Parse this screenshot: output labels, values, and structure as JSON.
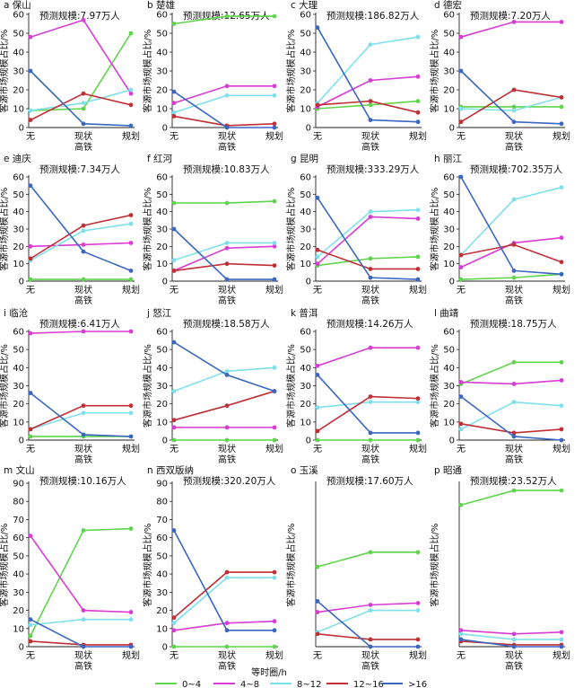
{
  "y_axis_title": "客源市场规模占比/%",
  "x_axis_sub": "高铁",
  "legend": {
    "title": "等时圈/h",
    "items": [
      "0~4",
      "4~8",
      "8~12",
      "12~16",
      ">16"
    ]
  },
  "series_colors": [
    "#5fd44c",
    "#d83cd2",
    "#7fe0ea",
    "#bf2f35",
    "#3a67c0"
  ],
  "chart_data": [
    {
      "type": "line",
      "label": "a 保山",
      "scale": "预测规模:7.97万人",
      "ylim": [
        0,
        60
      ],
      "yticks": [
        0,
        10,
        20,
        30,
        40,
        50,
        60
      ],
      "categories": [
        "无",
        "现状",
        "规划"
      ],
      "series": [
        {
          "name": "0~4",
          "values": [
            9,
            10,
            50
          ]
        },
        {
          "name": "4~8",
          "values": [
            48,
            57,
            18
          ]
        },
        {
          "name": "8~12",
          "values": [
            9,
            13,
            20
          ]
        },
        {
          "name": "12~16",
          "values": [
            4,
            18,
            12
          ]
        },
        {
          "name": ">16",
          "values": [
            30,
            2,
            1
          ]
        }
      ]
    },
    {
      "type": "line",
      "label": "b 楚雄",
      "scale": "预测规模:12.65万人",
      "ylim": [
        0,
        60
      ],
      "yticks": [
        0,
        10,
        20,
        30,
        40,
        50,
        60
      ],
      "categories": [
        "无",
        "现状",
        "规划"
      ],
      "series": [
        {
          "name": "0~4",
          "values": [
            55,
            59,
            59
          ]
        },
        {
          "name": "4~8",
          "values": [
            13,
            22,
            22
          ]
        },
        {
          "name": "8~12",
          "values": [
            8,
            17,
            17
          ]
        },
        {
          "name": "12~16",
          "values": [
            6,
            1,
            2
          ]
        },
        {
          "name": ">16",
          "values": [
            19,
            0,
            0
          ]
        }
      ]
    },
    {
      "type": "line",
      "label": "c 大理",
      "scale": "预测规模:186.82万人",
      "ylim": [
        0,
        60
      ],
      "yticks": [
        0,
        10,
        20,
        30,
        40,
        50,
        60
      ],
      "categories": [
        "无",
        "现状",
        "规划"
      ],
      "series": [
        {
          "name": "0~4",
          "values": [
            10,
            12,
            14
          ]
        },
        {
          "name": "4~8",
          "values": [
            11,
            25,
            27
          ]
        },
        {
          "name": "8~12",
          "values": [
            13,
            44,
            48
          ]
        },
        {
          "name": "12~16",
          "values": [
            12,
            14,
            8
          ]
        },
        {
          "name": ">16",
          "values": [
            53,
            4,
            3
          ]
        }
      ]
    },
    {
      "type": "line",
      "label": "d 德宏",
      "scale": "预测规模:7.20万人",
      "ylim": [
        0,
        60
      ],
      "yticks": [
        0,
        10,
        20,
        30,
        40,
        50,
        60
      ],
      "categories": [
        "无",
        "现状",
        "规划"
      ],
      "series": [
        {
          "name": "0~4",
          "values": [
            11,
            11,
            11
          ]
        },
        {
          "name": "4~8",
          "values": [
            48,
            56,
            56
          ]
        },
        {
          "name": "8~12",
          "values": [
            10,
            9,
            16
          ]
        },
        {
          "name": "12~16",
          "values": [
            3,
            20,
            16
          ]
        },
        {
          "name": ">16",
          "values": [
            30,
            3,
            2
          ]
        }
      ]
    },
    {
      "type": "line",
      "label": "e 迪庆",
      "scale": "预测规模:7.34万人",
      "ylim": [
        0,
        60
      ],
      "yticks": [
        0,
        10,
        20,
        30,
        40,
        50,
        60
      ],
      "categories": [
        "无",
        "现状",
        "规划"
      ],
      "series": [
        {
          "name": "0~4",
          "values": [
            1,
            1,
            1
          ]
        },
        {
          "name": "4~8",
          "values": [
            20,
            21,
            22
          ]
        },
        {
          "name": "8~12",
          "values": [
            12,
            29,
            33
          ]
        },
        {
          "name": "12~16",
          "values": [
            13,
            32,
            38
          ]
        },
        {
          "name": ">16",
          "values": [
            55,
            17,
            6
          ]
        }
      ]
    },
    {
      "type": "line",
      "label": "f 红河",
      "scale": "预测规模:10.83万人",
      "ylim": [
        0,
        60
      ],
      "yticks": [
        0,
        10,
        20,
        30,
        40,
        50,
        60
      ],
      "categories": [
        "无",
        "现状",
        "规划"
      ],
      "series": [
        {
          "name": "0~4",
          "values": [
            45,
            45,
            46
          ]
        },
        {
          "name": "4~8",
          "values": [
            6,
            19,
            20
          ]
        },
        {
          "name": "8~12",
          "values": [
            12,
            22,
            22
          ]
        },
        {
          "name": "12~16",
          "values": [
            6,
            10,
            9
          ]
        },
        {
          "name": ">16",
          "values": [
            30,
            1,
            1
          ]
        }
      ]
    },
    {
      "type": "line",
      "label": "g 昆明",
      "scale": "预测规模:333.29万人",
      "ylim": [
        0,
        60
      ],
      "yticks": [
        0,
        10,
        20,
        30,
        40,
        50,
        60
      ],
      "categories": [
        "无",
        "现状",
        "规划"
      ],
      "series": [
        {
          "name": "0~4",
          "values": [
            9,
            13,
            14
          ]
        },
        {
          "name": "4~8",
          "values": [
            10,
            37,
            36
          ]
        },
        {
          "name": "8~12",
          "values": [
            14,
            40,
            41
          ]
        },
        {
          "name": "12~16",
          "values": [
            18,
            7,
            7
          ]
        },
        {
          "name": ">16",
          "values": [
            48,
            2,
            1
          ]
        }
      ]
    },
    {
      "type": "line",
      "label": "h 丽江",
      "scale": "预测规模:702.35万人",
      "ylim": [
        0,
        60
      ],
      "yticks": [
        0,
        10,
        20,
        30,
        40,
        50,
        60
      ],
      "categories": [
        "无",
        "现状",
        "规划"
      ],
      "series": [
        {
          "name": "0~4",
          "values": [
            1,
            2,
            4
          ]
        },
        {
          "name": "4~8",
          "values": [
            8,
            22,
            25
          ]
        },
        {
          "name": "8~12",
          "values": [
            15,
            47,
            54
          ]
        },
        {
          "name": "12~16",
          "values": [
            15,
            21,
            11
          ]
        },
        {
          "name": ">16",
          "values": [
            60,
            6,
            4
          ]
        }
      ]
    },
    {
      "type": "line",
      "label": "i 临沧",
      "scale": "预测规模:6.41万人",
      "ylim": [
        0,
        60
      ],
      "yticks": [
        0,
        10,
        20,
        30,
        40,
        50,
        60
      ],
      "categories": [
        "无",
        "现状",
        "规划"
      ],
      "series": [
        {
          "name": "0~4",
          "values": [
            2,
            2,
            2
          ]
        },
        {
          "name": "4~8",
          "values": [
            59,
            60,
            60
          ]
        },
        {
          "name": "8~12",
          "values": [
            6,
            15,
            15
          ]
        },
        {
          "name": "12~16",
          "values": [
            6,
            19,
            19
          ]
        },
        {
          "name": ">16",
          "values": [
            26,
            3,
            2
          ]
        }
      ]
    },
    {
      "type": "line",
      "label": "j 怒江",
      "scale": "预测规模:18.58万人",
      "ylim": [
        0,
        60
      ],
      "yticks": [
        0,
        10,
        20,
        30,
        40,
        50,
        60
      ],
      "categories": [
        "无",
        "现状",
        "规划"
      ],
      "series": [
        {
          "name": "0~4",
          "values": [
            0,
            0,
            0
          ]
        },
        {
          "name": "4~8",
          "values": [
            7,
            7,
            7
          ]
        },
        {
          "name": "8~12",
          "values": [
            27,
            38,
            40
          ]
        },
        {
          "name": "12~16",
          "values": [
            11,
            19,
            27
          ]
        },
        {
          "name": ">16",
          "values": [
            54,
            36,
            27
          ]
        }
      ]
    },
    {
      "type": "line",
      "label": "k 普洱",
      "scale": "预测规模:14.26万人",
      "ylim": [
        0,
        60
      ],
      "yticks": [
        0,
        10,
        20,
        30,
        40,
        50,
        60
      ],
      "categories": [
        "无",
        "现状",
        "规划"
      ],
      "series": [
        {
          "name": "0~4",
          "values": [
            0,
            0,
            0
          ]
        },
        {
          "name": "4~8",
          "values": [
            41,
            51,
            51
          ]
        },
        {
          "name": "8~12",
          "values": [
            18,
            21,
            21
          ]
        },
        {
          "name": "12~16",
          "values": [
            5,
            24,
            23
          ]
        },
        {
          "name": ">16",
          "values": [
            36,
            4,
            4
          ]
        }
      ]
    },
    {
      "type": "line",
      "label": "l 曲靖",
      "scale": "预测规模:18.75万人",
      "ylim": [
        0,
        60
      ],
      "yticks": [
        0,
        10,
        20,
        30,
        40,
        50,
        60
      ],
      "categories": [
        "无",
        "现状",
        "规划"
      ],
      "series": [
        {
          "name": "0~4",
          "values": [
            31,
            43,
            43
          ]
        },
        {
          "name": "4~8",
          "values": [
            32,
            31,
            33
          ]
        },
        {
          "name": "8~12",
          "values": [
            6,
            21,
            19
          ]
        },
        {
          "name": "12~16",
          "values": [
            9,
            4,
            6
          ]
        },
        {
          "name": ">16",
          "values": [
            24,
            2,
            0
          ]
        }
      ]
    },
    {
      "type": "line",
      "label": "m 文山",
      "scale": "预测规模:10.16万人",
      "ylim": [
        0,
        90
      ],
      "yticks": [
        0,
        10,
        20,
        30,
        40,
        50,
        60,
        70,
        80,
        90
      ],
      "categories": [
        "无",
        "现状",
        "规划"
      ],
      "series": [
        {
          "name": "0~4",
          "values": [
            6,
            64,
            65
          ]
        },
        {
          "name": "4~8",
          "values": [
            61,
            20,
            19
          ]
        },
        {
          "name": "8~12",
          "values": [
            12,
            15,
            15
          ]
        },
        {
          "name": "12~16",
          "values": [
            3,
            1,
            1
          ]
        },
        {
          "name": ">16",
          "values": [
            15,
            0,
            0
          ]
        }
      ]
    },
    {
      "type": "line",
      "label": "n 西双版纳",
      "scale": "预测规模:320.20万人",
      "ylim": [
        0,
        90
      ],
      "yticks": [
        0,
        10,
        20,
        30,
        40,
        50,
        60,
        70,
        80,
        90
      ],
      "categories": [
        "无",
        "现状",
        "规划"
      ],
      "series": [
        {
          "name": "0~4",
          "values": [
            0,
            0,
            0
          ]
        },
        {
          "name": "4~8",
          "values": [
            9,
            13,
            14
          ]
        },
        {
          "name": "8~12",
          "values": [
            13,
            38,
            38
          ]
        },
        {
          "name": "12~16",
          "values": [
            16,
            41,
            41
          ]
        },
        {
          "name": ">16",
          "values": [
            64,
            9,
            9
          ]
        }
      ]
    },
    {
      "type": "line",
      "label": "o 玉溪",
      "scale": "预测规模:17.60万人",
      "ylim": [
        0,
        90
      ],
      "yticks": [],
      "categories": [
        "无",
        "现状",
        "规划"
      ],
      "series": [
        {
          "name": "0~4",
          "values": [
            44,
            52,
            52
          ]
        },
        {
          "name": "4~8",
          "values": [
            19,
            23,
            24
          ]
        },
        {
          "name": "8~12",
          "values": [
            8,
            20,
            20
          ]
        },
        {
          "name": "12~16",
          "values": [
            7,
            4,
            4
          ]
        },
        {
          "name": ">16",
          "values": [
            25,
            0,
            0
          ]
        }
      ]
    },
    {
      "type": "line",
      "label": "p 昭通",
      "scale": "预测规模:23.52万人",
      "ylim": [
        0,
        90
      ],
      "yticks": [],
      "categories": [
        "无",
        "现状",
        "规划"
      ],
      "series": [
        {
          "name": "0~4",
          "values": [
            78,
            86,
            86
          ]
        },
        {
          "name": "4~8",
          "values": [
            9,
            7,
            8
          ]
        },
        {
          "name": "8~12",
          "values": [
            7,
            4,
            4
          ]
        },
        {
          "name": "12~16",
          "values": [
            3,
            1,
            1
          ]
        },
        {
          "name": ">16",
          "values": [
            4,
            0,
            0
          ]
        }
      ]
    }
  ]
}
